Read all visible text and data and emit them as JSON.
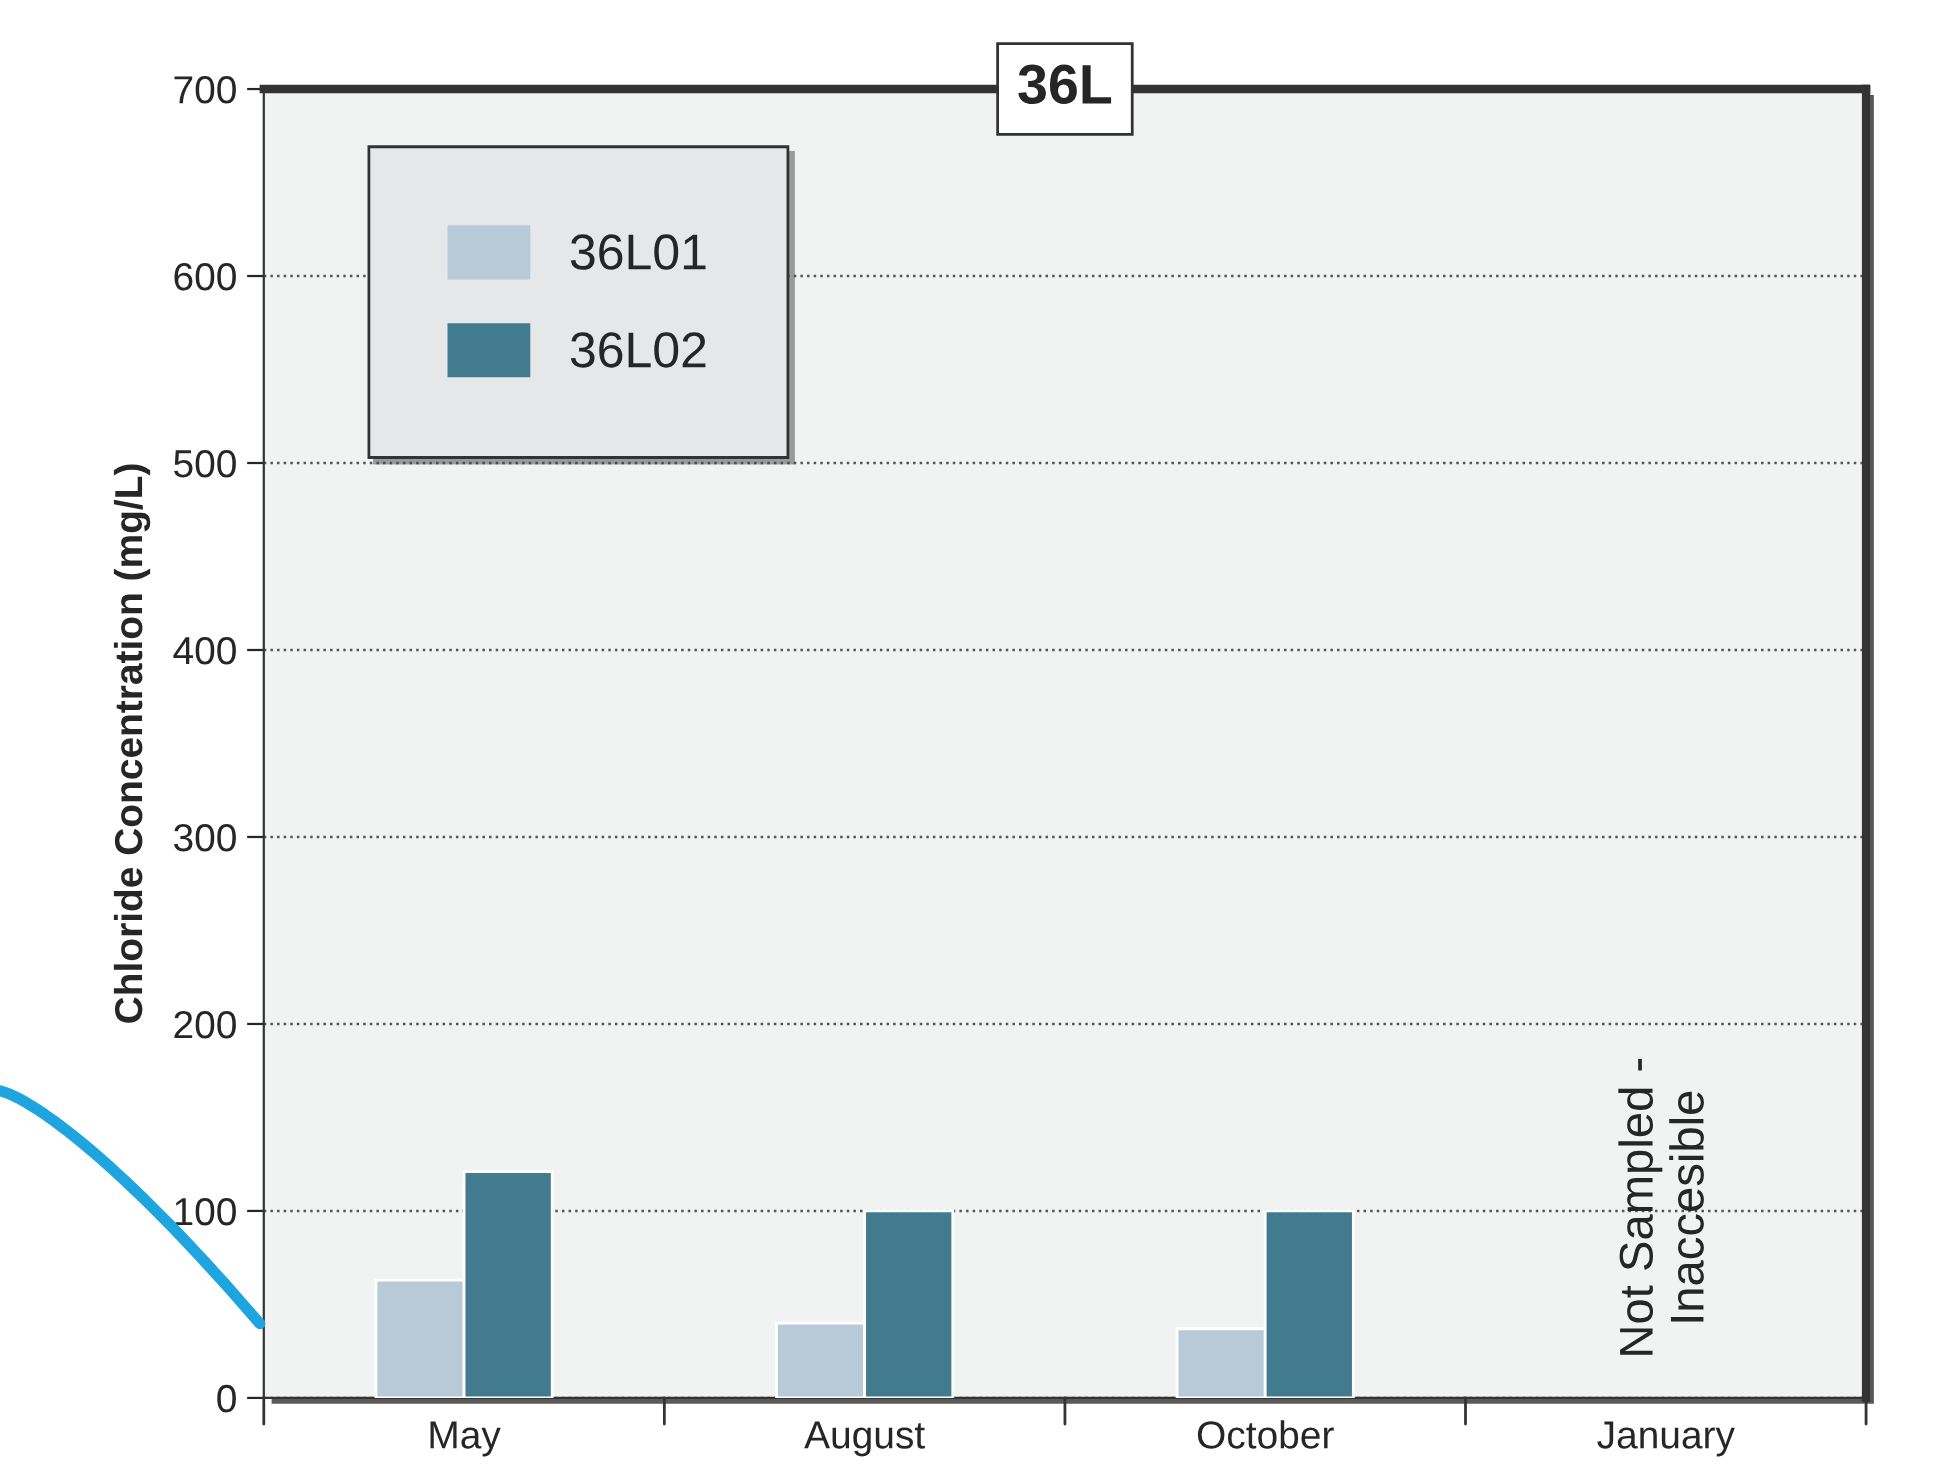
{
  "chart_data": {
    "type": "bar",
    "title": "36L",
    "ylabel": "Chloride Concentration (mg/L)",
    "categories": [
      "May",
      "August",
      "October",
      "January"
    ],
    "series": [
      {
        "name": "36L01",
        "color": "#b8cad8",
        "values": [
          63,
          40,
          37,
          null
        ]
      },
      {
        "name": "36L02",
        "color": "#437b8e",
        "values": [
          121,
          100,
          100,
          null
        ]
      }
    ],
    "ylim": [
      0,
      700
    ],
    "yticks": [
      0,
      100,
      200,
      300,
      400,
      500,
      600,
      700
    ],
    "grid": "y",
    "legend": "top left",
    "annotations": [
      "Not Sampled -\nInaccesible"
    ]
  }
}
